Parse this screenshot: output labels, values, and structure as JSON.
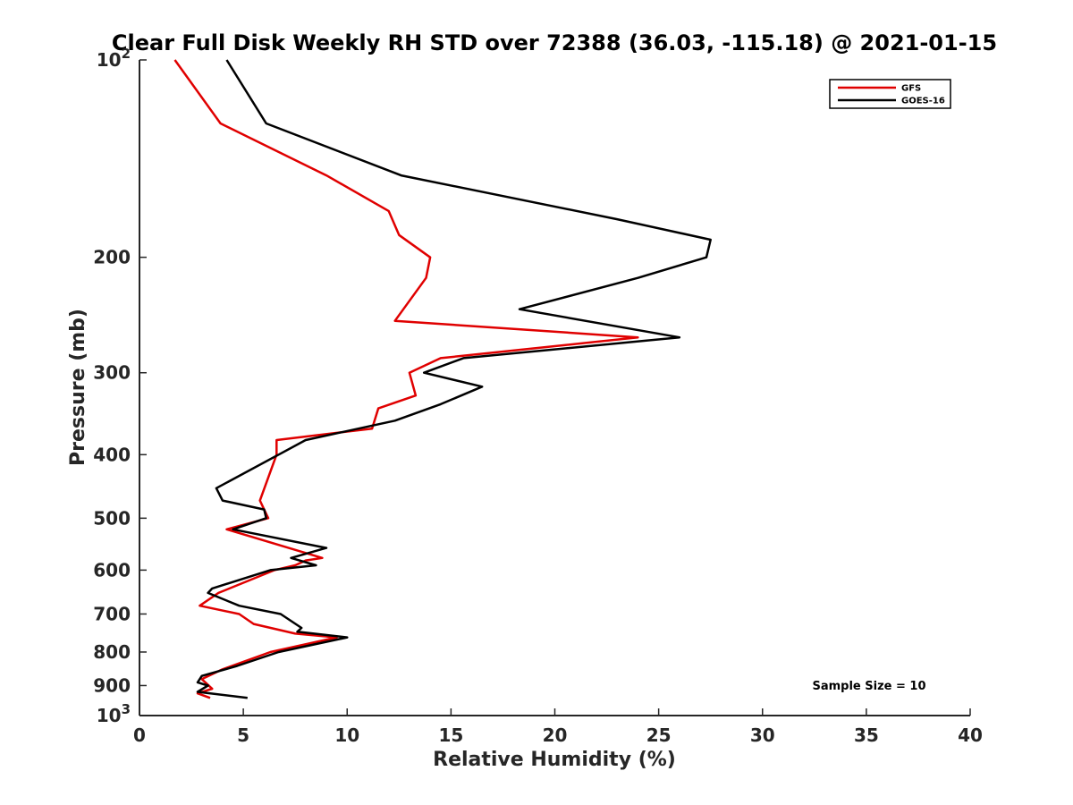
{
  "chart_data": {
    "type": "line",
    "title": "Clear Full Disk Weekly RH STD over 72388 (36.03, -115.18) @ 2021-01-15",
    "xlabel": "Relative Humidity (%)",
    "ylabel": "Pressure (mb)",
    "xlim": [
      0,
      40
    ],
    "ylim": [
      100,
      1000
    ],
    "yscale": "log",
    "y_reversed": true,
    "grid": false,
    "legend_position": "top-right",
    "x_ticks": [
      "0",
      "5",
      "10",
      "15",
      "20",
      "25",
      "30",
      "35",
      "40"
    ],
    "y_ticks": [
      {
        "value": 100,
        "base": "10",
        "exp": "2"
      },
      {
        "value": 200,
        "label": "200"
      },
      {
        "value": 300,
        "label": "300"
      },
      {
        "value": 400,
        "label": "400"
      },
      {
        "value": 500,
        "label": "500"
      },
      {
        "value": 600,
        "label": "600"
      },
      {
        "value": 700,
        "label": "700"
      },
      {
        "value": 800,
        "label": "800"
      },
      {
        "value": 900,
        "label": "900"
      },
      {
        "value": 1000,
        "base": "10",
        "exp": "3"
      }
    ],
    "annotation": "Sample Size = 10",
    "series": [
      {
        "name": "GFS",
        "color": "#e00000",
        "points": [
          [
            1.7,
            100
          ],
          [
            3.9,
            125
          ],
          [
            9.0,
            150
          ],
          [
            12.0,
            170
          ],
          [
            12.5,
            185
          ],
          [
            14.0,
            200
          ],
          [
            13.8,
            215
          ],
          [
            12.3,
            250
          ],
          [
            24.0,
            265
          ],
          [
            14.5,
            285
          ],
          [
            13.0,
            300
          ],
          [
            13.3,
            325
          ],
          [
            11.5,
            340
          ],
          [
            11.2,
            365
          ],
          [
            6.6,
            380
          ],
          [
            6.6,
            400
          ],
          [
            5.8,
            470
          ],
          [
            6.2,
            500
          ],
          [
            4.2,
            520
          ],
          [
            8.8,
            575
          ],
          [
            8.0,
            580
          ],
          [
            7.5,
            590
          ],
          [
            6.5,
            600
          ],
          [
            3.8,
            650
          ],
          [
            2.9,
            680
          ],
          [
            4.8,
            700
          ],
          [
            5.5,
            725
          ],
          [
            7.5,
            750
          ],
          [
            9.5,
            760
          ],
          [
            6.3,
            800
          ],
          [
            4.0,
            850
          ],
          [
            3.0,
            880
          ],
          [
            3.5,
            910
          ],
          [
            2.8,
            925
          ],
          [
            3.4,
            940
          ]
        ]
      },
      {
        "name": "GOES-16",
        "color": "#000000",
        "points": [
          [
            4.2,
            100
          ],
          [
            6.1,
            125
          ],
          [
            12.6,
            150
          ],
          [
            23.0,
            175
          ],
          [
            27.5,
            188
          ],
          [
            27.3,
            200
          ],
          [
            24.0,
            215
          ],
          [
            18.3,
            240
          ],
          [
            26.0,
            265
          ],
          [
            15.6,
            285
          ],
          [
            13.7,
            300
          ],
          [
            16.5,
            315
          ],
          [
            14.5,
            335
          ],
          [
            12.3,
            355
          ],
          [
            8.0,
            380
          ],
          [
            6.7,
            400
          ],
          [
            3.7,
            450
          ],
          [
            4.0,
            470
          ],
          [
            6.0,
            485
          ],
          [
            6.1,
            500
          ],
          [
            4.5,
            520
          ],
          [
            9.0,
            555
          ],
          [
            7.3,
            575
          ],
          [
            8.5,
            590
          ],
          [
            6.3,
            600
          ],
          [
            3.5,
            640
          ],
          [
            3.3,
            650
          ],
          [
            4.8,
            680
          ],
          [
            6.8,
            700
          ],
          [
            7.8,
            735
          ],
          [
            7.6,
            745
          ],
          [
            10.0,
            760
          ],
          [
            6.7,
            800
          ],
          [
            4.7,
            840
          ],
          [
            3.0,
            870
          ],
          [
            2.8,
            890
          ],
          [
            3.3,
            900
          ],
          [
            2.8,
            920
          ],
          [
            5.2,
            940
          ]
        ]
      }
    ]
  }
}
